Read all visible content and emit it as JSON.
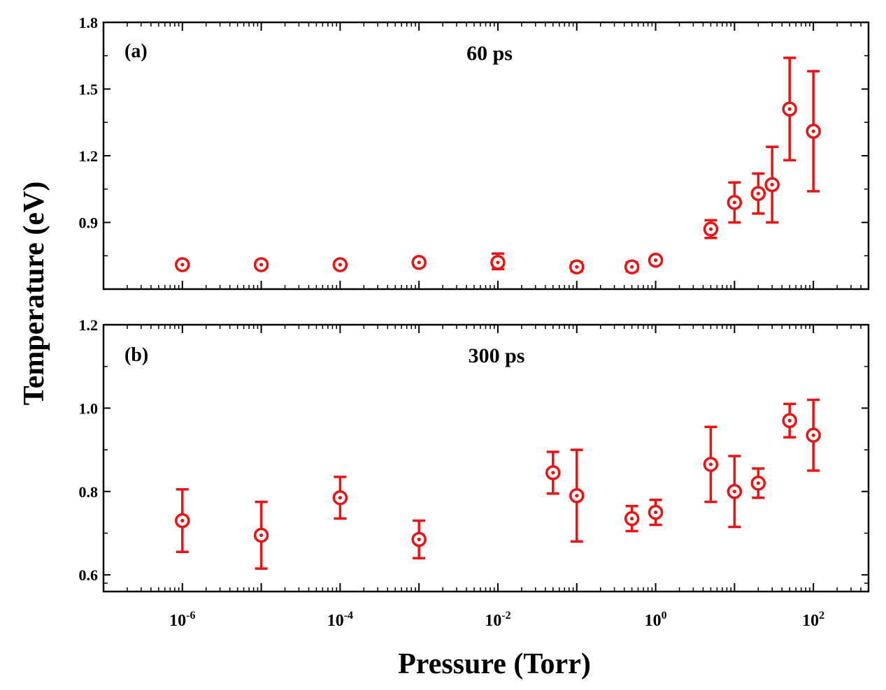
{
  "chart_data": [
    {
      "type": "scatter",
      "panel_label": "(a)",
      "title": "60 ps",
      "xscale": "log",
      "xlim": [
        1e-07,
        500
      ],
      "ylim": [
        0.6,
        1.8
      ],
      "yticks": [
        0.9,
        1.2,
        1.5,
        1.8
      ],
      "ytick_labels": [
        "0.9",
        "1.2",
        "1.5",
        "1.8"
      ],
      "series": [
        {
          "name": "60 ps",
          "color": "#ee1111",
          "x": [
            1e-06,
            1e-05,
            0.0001,
            0.001,
            0.01,
            0.1,
            0.5,
            1,
            5,
            10,
            20,
            30,
            50,
            100
          ],
          "y": [
            0.71,
            0.71,
            0.71,
            0.72,
            0.72,
            0.7,
            0.7,
            0.73,
            0.87,
            0.99,
            1.03,
            1.07,
            1.41,
            1.31
          ],
          "err_low": [
            0.015,
            0.015,
            0.015,
            0.015,
            0.03,
            0.02,
            0.02,
            0.015,
            0.04,
            0.09,
            0.09,
            0.17,
            0.23,
            0.27
          ],
          "err_high": [
            0.015,
            0.015,
            0.015,
            0.015,
            0.04,
            0.02,
            0.02,
            0.015,
            0.04,
            0.09,
            0.09,
            0.17,
            0.23,
            0.27
          ]
        }
      ]
    },
    {
      "type": "scatter",
      "panel_label": "(b)",
      "title": "300 ps",
      "xscale": "log",
      "xlim": [
        1e-07,
        500
      ],
      "ylim": [
        0.56,
        1.2
      ],
      "yticks": [
        0.6,
        0.8,
        1.0,
        1.2
      ],
      "ytick_labels": [
        "0.6",
        "0.8",
        "1.0",
        "1.2"
      ],
      "xticks": [
        1e-06,
        0.0001,
        0.01,
        1,
        100
      ],
      "xtick_bases": [
        "10",
        "10",
        "10",
        "10",
        "10"
      ],
      "xtick_exponents": [
        "-6",
        "-4",
        "-2",
        "0",
        "2"
      ],
      "series": [
        {
          "name": "300 ps",
          "color": "#ee1111",
          "x": [
            1e-06,
            1e-05,
            0.0001,
            0.001,
            0.05,
            0.1,
            0.5,
            1,
            5,
            10,
            20,
            50,
            100
          ],
          "y": [
            0.73,
            0.695,
            0.785,
            0.685,
            0.845,
            0.79,
            0.735,
            0.75,
            0.865,
            0.8,
            0.82,
            0.97,
            0.935
          ],
          "err_low": [
            0.075,
            0.08,
            0.05,
            0.045,
            0.05,
            0.11,
            0.03,
            0.03,
            0.09,
            0.085,
            0.035,
            0.04,
            0.085
          ],
          "err_high": [
            0.075,
            0.08,
            0.05,
            0.045,
            0.05,
            0.11,
            0.03,
            0.03,
            0.09,
            0.085,
            0.035,
            0.04,
            0.085
          ]
        }
      ]
    }
  ],
  "axes": {
    "ylabel": "Temperature (eV)",
    "xlabel": "Pressure (Torr)"
  }
}
